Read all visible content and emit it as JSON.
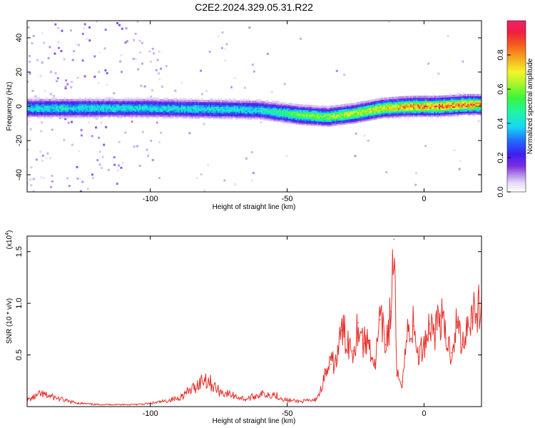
{
  "figure": {
    "title": "C2E2.2024.329.05.31.R22"
  },
  "chart_data": [
    {
      "type": "heatmap",
      "xlabel": "Height of straight line (km)",
      "ylabel": "Frequency (Hz)",
      "xlim": [
        -145,
        21
      ],
      "ylim": [
        -50,
        50
      ],
      "xticks": [
        -100,
        -50,
        0
      ],
      "yticks": [
        -40,
        -20,
        0,
        20,
        40
      ],
      "grid": false,
      "colorbar": {
        "label": "Normalized spectral amplitude",
        "range": [
          0,
          1
        ],
        "ticks": [
          "0.0",
          "0.2",
          "0.4",
          "0.6",
          "0.8"
        ],
        "colormap": "rainbow (white-lavender-purple-blue-cyan-green-yellow-orange-red-magenta)"
      },
      "ridge": {
        "description_points_x": [
          -145,
          -100,
          -60,
          -45,
          -35,
          -25,
          -15,
          -5,
          5,
          15,
          21
        ],
        "center_frequency": [
          -1,
          -1,
          -2,
          -5,
          -6,
          -4,
          -1,
          0,
          0,
          1,
          1
        ],
        "peak_amplitude": [
          0.45,
          0.45,
          0.45,
          0.62,
          0.65,
          0.7,
          0.75,
          0.85,
          0.9,
          0.9,
          0.85
        ]
      }
    },
    {
      "type": "line",
      "xlabel": "Height of straight line (km)",
      "ylabel": "SNR (10 * v/v)",
      "ylabel_multiplier": "(x10",
      "ylabel_multiplier_exp": "4",
      "xlim": [
        -145,
        21
      ],
      "ylim": [
        0,
        16500
      ],
      "xticks": [
        -100,
        -50,
        0
      ],
      "yticks": [
        5000,
        10000,
        15000
      ],
      "ytick_labels": [
        "0.5",
        "1.0",
        "1.5"
      ],
      "grid": false,
      "series": [
        {
          "color": "#e8302a",
          "x": [
            -145,
            -140,
            -135,
            -130,
            -125,
            -120,
            -115,
            -110,
            -105,
            -100,
            -95,
            -90,
            -85,
            -80,
            -78,
            -75,
            -70,
            -65,
            -60,
            -55,
            -50,
            -45,
            -40,
            -38,
            -36,
            -34,
            -32,
            -30,
            -28,
            -26,
            -24,
            -22,
            -20,
            -18,
            -16,
            -14,
            -12,
            -11,
            -10,
            -8,
            -6,
            -4,
            -2,
            0,
            2,
            4,
            6,
            8,
            10,
            12,
            14,
            16,
            18,
            21
          ],
          "y": [
            600,
            1200,
            900,
            500,
            300,
            200,
            200,
            200,
            200,
            300,
            500,
            800,
            1600,
            2800,
            2300,
            1500,
            1100,
            700,
            1200,
            1200,
            600,
            500,
            600,
            1400,
            3200,
            4100,
            4500,
            7400,
            6500,
            5400,
            8100,
            6100,
            6400,
            3800,
            8400,
            6000,
            9200,
            16200,
            3000,
            2400,
            7300,
            7800,
            4800,
            6100,
            8000,
            7500,
            8800,
            6600,
            5200,
            8200,
            6000,
            8300,
            9500,
            9300
          ]
        }
      ]
    }
  ]
}
